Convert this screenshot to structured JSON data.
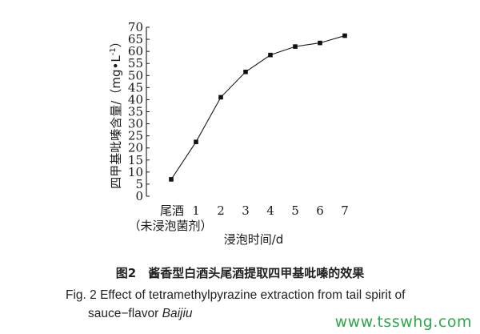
{
  "chart_data": {
    "type": "line",
    "ylabel": "四甲基吡嗪含量/（mg•L",
    "ylabel_sup": "-1",
    "ylabel_close": "）",
    "xlabel": "浸泡时间/d",
    "ylim": [
      0,
      70
    ],
    "yticks": [
      0,
      5,
      10,
      15,
      20,
      25,
      30,
      35,
      40,
      45,
      50,
      55,
      60,
      65,
      70
    ],
    "categories": [
      "尾酒",
      "1",
      "2",
      "3",
      "4",
      "5",
      "6",
      "7"
    ],
    "first_category_note": "（未浸泡菌剂）",
    "values": [
      7,
      22.5,
      41,
      51.5,
      58.5,
      62,
      63.5,
      66.5
    ],
    "grid": false,
    "marker": "square"
  },
  "caption": {
    "zh": "图2　酱香型白酒头尾酒提取四甲基吡嗪的效果",
    "en_line1": "Fig. 2 Effect of tetramethylpyrazine extraction from tail spirit of",
    "en_line2_prefix": "sauce−flavor ",
    "en_line2_italic": "Baijiu"
  },
  "watermark": "www.tsswhg.com",
  "colors": {
    "line": "#1a1a1a",
    "watermark": "#2ea84a"
  }
}
